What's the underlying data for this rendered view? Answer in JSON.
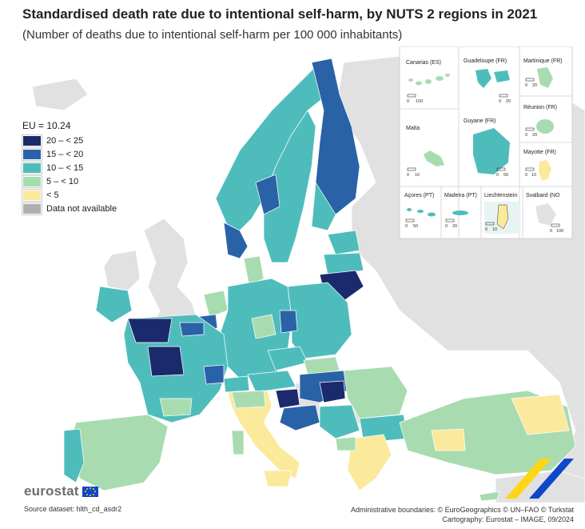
{
  "title": "Standardised death rate due to intentional self-harm, by NUTS 2 regions in 2021",
  "subtitle": "(Number of deaths due to intentional self-harm per 100 000 inhabitants)",
  "legend": {
    "eu_value": "EU = 10.24",
    "items": [
      {
        "label": "20 – < 25",
        "color": "#1a2a6c"
      },
      {
        "label": "15 – < 20",
        "color": "#2a62a8"
      },
      {
        "label": "10 – < 15",
        "color": "#4fbcbc"
      },
      {
        "label": "5 – < 10",
        "color": "#a8dcb0"
      },
      {
        "label": "< 5",
        "color": "#fbe99c"
      },
      {
        "label": "Data not available",
        "color": "#b0b0b0"
      }
    ]
  },
  "insets": [
    {
      "name": "Canarias (ES)",
      "scale": [
        "0",
        "100"
      ]
    },
    {
      "name": "Guadeloupe (FR)",
      "scale": [
        "0",
        "20"
      ]
    },
    {
      "name": "Martinique (FR)",
      "scale": [
        "0",
        "20"
      ]
    },
    {
      "name": "Réunion (FR)",
      "scale": [
        "0",
        "20"
      ]
    },
    {
      "name": "Malta",
      "scale": [
        "0",
        "10"
      ]
    },
    {
      "name": "Guyane (FR)",
      "scale": [
        "0",
        "50"
      ]
    },
    {
      "name": "Mayotte (FR)",
      "scale": [
        "0",
        "10"
      ]
    },
    {
      "name": "Açores (PT)",
      "scale": [
        "0",
        "50"
      ]
    },
    {
      "name": "Madeira (PT)",
      "scale": [
        "0",
        "20"
      ]
    },
    {
      "name": "Liechtenstein",
      "scale": [
        "0",
        "10"
      ]
    },
    {
      "name": "Svalbard (NO",
      "scale": [
        "0",
        "100"
      ]
    }
  ],
  "logo": "eurostat",
  "source": "Source dataset: hlth_cd_asdr2",
  "credits": {
    "line1": "Administrative boundaries: © EuroGeographics © UN–FAO © Turkstat",
    "line2": "Cartography: Eurostat – IMAGE, 09/2024"
  },
  "colors": {
    "sea": "#ffffff",
    "non_eu_land": "#e1e1e1",
    "border": "#ffffff"
  }
}
